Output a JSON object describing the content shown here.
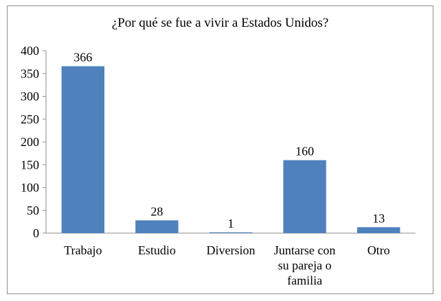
{
  "chart_data": {
    "type": "bar",
    "title": "¿Por qué se fue a vivir a Estados Unidos?",
    "xlabel": "",
    "ylabel": "",
    "categories": [
      [
        "Trabajo"
      ],
      [
        "Estudio"
      ],
      [
        "Diversion"
      ],
      [
        "Juntarse con",
        "su pareja o",
        "familia"
      ],
      [
        "Otro"
      ]
    ],
    "values": [
      366,
      28,
      1,
      160,
      13
    ],
    "ylim": [
      0,
      400
    ],
    "yticks": [
      0,
      50,
      100,
      150,
      200,
      250,
      300,
      350,
      400
    ],
    "grid": false,
    "legend": "none",
    "bar_color": "#4f81bd"
  }
}
